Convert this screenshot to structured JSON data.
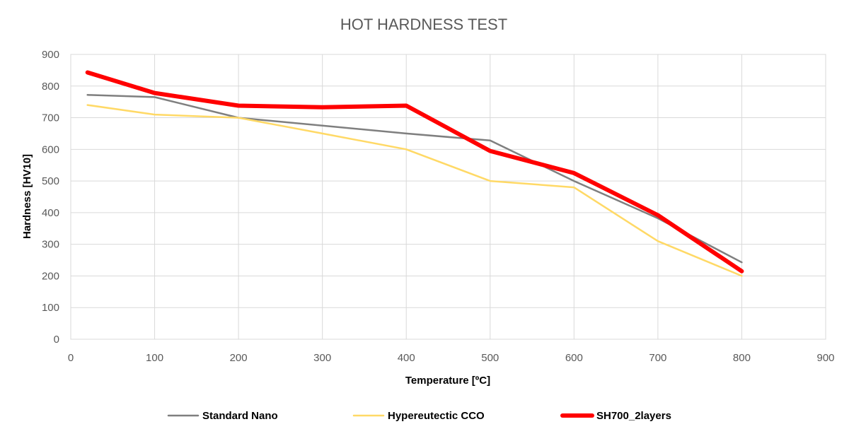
{
  "chart_data": {
    "type": "line",
    "title": "HOT HARDNESS TEST",
    "xlabel": "Temperature [ºC]",
    "ylabel": "Hardness [HV10]",
    "xlim": [
      0,
      900
    ],
    "ylim": [
      0,
      900
    ],
    "xticks": [
      0,
      100,
      200,
      300,
      400,
      500,
      600,
      700,
      800,
      900
    ],
    "yticks": [
      0,
      100,
      200,
      300,
      400,
      500,
      600,
      700,
      800,
      900
    ],
    "grid": true,
    "legend_position": "bottom",
    "series": [
      {
        "name": "Standard Nano",
        "color": "#7f7f7f",
        "width": 2.5,
        "x": [
          20,
          100,
          200,
          400,
          500,
          600,
          700,
          800
        ],
        "y": [
          772,
          765,
          700,
          650,
          628,
          500,
          382,
          243
        ]
      },
      {
        "name": "Hypereutectic CCO",
        "color": "#ffd966",
        "width": 2.5,
        "x": [
          20,
          100,
          200,
          300,
          400,
          500,
          600,
          700,
          800
        ],
        "y": [
          740,
          710,
          700,
          650,
          600,
          500,
          480,
          310,
          200
        ]
      },
      {
        "name": "SH700_2layers",
        "color": "#ff0000",
        "width": 6,
        "x": [
          20,
          100,
          200,
          300,
          400,
          500,
          600,
          700,
          800
        ],
        "y": [
          843,
          778,
          738,
          733,
          738,
          595,
          525,
          392,
          215
        ]
      }
    ]
  }
}
